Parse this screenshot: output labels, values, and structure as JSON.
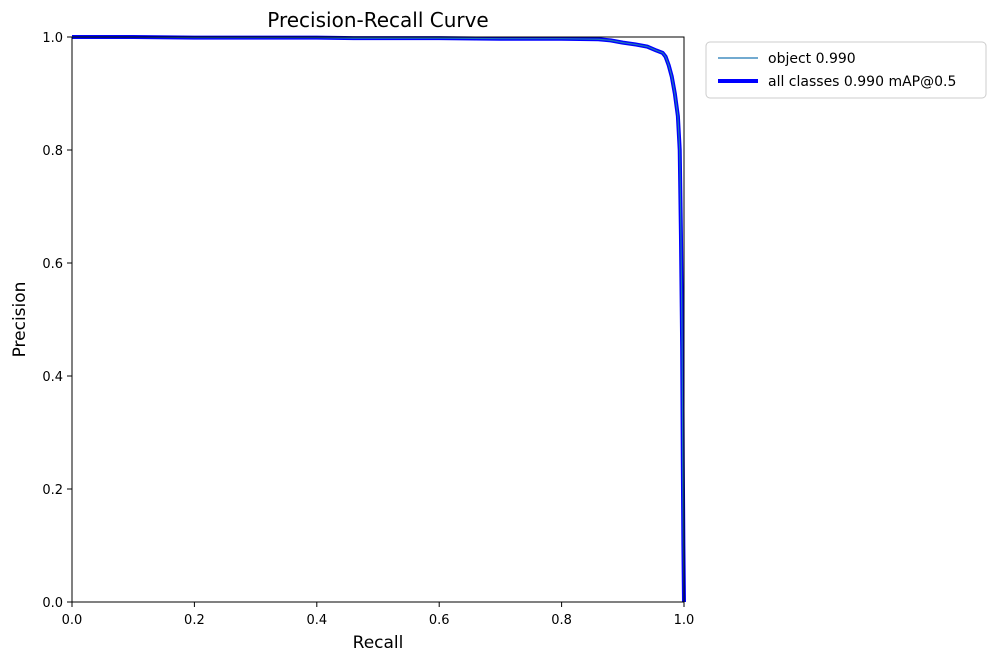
{
  "chart_data": {
    "type": "line",
    "title": "Precision-Recall Curve",
    "xlabel": "Recall",
    "ylabel": "Precision",
    "xlim": [
      0.0,
      1.0
    ],
    "ylim": [
      0.0,
      1.0
    ],
    "xticks": [
      "0.0",
      "0.2",
      "0.4",
      "0.6",
      "0.8",
      "1.0"
    ],
    "yticks": [
      "0.0",
      "0.2",
      "0.4",
      "0.6",
      "0.8",
      "1.0"
    ],
    "grid": false,
    "legend_position": "outside-top-right",
    "series": [
      {
        "name": "object 0.990",
        "color": "#1f77b4",
        "style": "thin",
        "x": [
          0.0,
          0.1,
          0.2,
          0.3,
          0.4,
          0.46,
          0.5,
          0.6,
          0.7,
          0.8,
          0.86,
          0.88,
          0.9,
          0.92,
          0.94,
          0.955,
          0.965,
          0.97,
          0.975,
          0.98,
          0.985,
          0.99,
          0.993,
          0.995,
          0.997,
          0.998,
          0.999,
          1.0
        ],
        "y": [
          1.0,
          1.0,
          0.999,
          0.999,
          0.999,
          0.998,
          0.998,
          0.998,
          0.997,
          0.997,
          0.996,
          0.994,
          0.99,
          0.987,
          0.983,
          0.976,
          0.972,
          0.965,
          0.95,
          0.93,
          0.9,
          0.86,
          0.8,
          0.65,
          0.45,
          0.25,
          0.1,
          0.0
        ]
      },
      {
        "name": "all classes 0.990 mAP@0.5",
        "color": "#0000ff",
        "style": "thick",
        "x": [
          0.0,
          0.1,
          0.2,
          0.3,
          0.4,
          0.46,
          0.5,
          0.6,
          0.7,
          0.8,
          0.86,
          0.88,
          0.9,
          0.92,
          0.94,
          0.955,
          0.965,
          0.97,
          0.975,
          0.98,
          0.985,
          0.99,
          0.993,
          0.995,
          0.997,
          0.998,
          0.999,
          1.0
        ],
        "y": [
          1.0,
          1.0,
          0.999,
          0.999,
          0.999,
          0.998,
          0.998,
          0.998,
          0.997,
          0.997,
          0.996,
          0.994,
          0.99,
          0.987,
          0.983,
          0.976,
          0.972,
          0.965,
          0.95,
          0.93,
          0.9,
          0.86,
          0.8,
          0.65,
          0.45,
          0.25,
          0.1,
          0.0
        ]
      }
    ]
  }
}
